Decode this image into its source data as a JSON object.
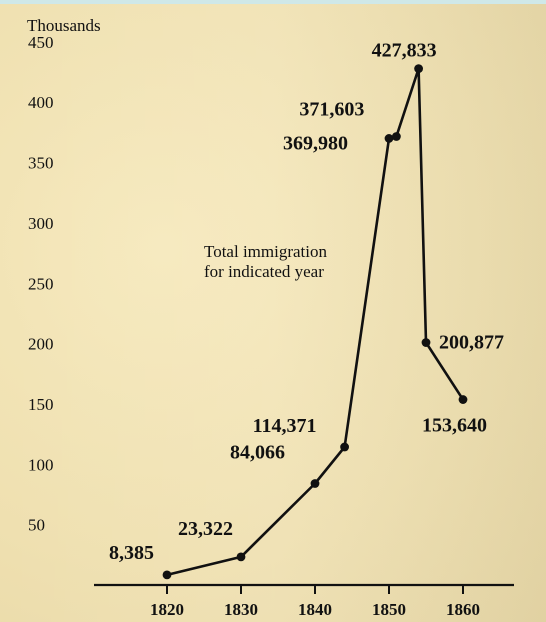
{
  "chart_data": {
    "type": "line",
    "ylabel": "Thousands",
    "yticks": [
      50,
      100,
      150,
      200,
      250,
      300,
      350,
      400,
      450
    ],
    "xticks": [
      1820,
      1830,
      1840,
      1850,
      1860
    ],
    "xlim": [
      1820,
      1860
    ],
    "ylim": [
      0,
      450
    ],
    "grid": false,
    "annotation": [
      "Total immigration",
      "for indicated year"
    ],
    "points": [
      {
        "x": 1820,
        "y": 8385,
        "label": "8,385"
      },
      {
        "x": 1830,
        "y": 23322,
        "label": "23,322"
      },
      {
        "x": 1840,
        "y": 84066,
        "label": "84,066"
      },
      {
        "x": 1844,
        "y": 114371,
        "label": "114,371"
      },
      {
        "x": 1850,
        "y": 369980,
        "label": "369,980"
      },
      {
        "x": 1851,
        "y": 371603,
        "label": "371,603"
      },
      {
        "x": 1854,
        "y": 427833,
        "label": "427,833"
      },
      {
        "x": 1855,
        "y": 200877,
        "label": "200,877"
      },
      {
        "x": 1860,
        "y": 153640,
        "label": "153,640"
      }
    ]
  }
}
